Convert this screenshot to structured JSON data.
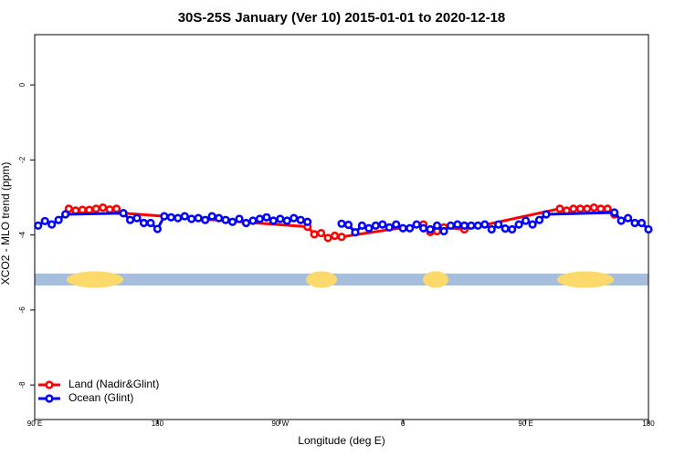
{
  "chart_data": {
    "type": "line",
    "title": "30S-25S January (Ver 10)   2015-01-01 to 2020-12-18",
    "x_label": "Longitude (deg E)",
    "y_label": "XCO2 - MLO trend (ppm)",
    "xlim": [
      90,
      540
    ],
    "xticks": [
      {
        "value": 90,
        "label": "90 E"
      },
      180,
      {
        "value": 270,
        "label": "90 W"
      },
      {
        "value": 360,
        "label": "0"
      },
      {
        "value": 450,
        "label": "90 E"
      },
      {
        "value": 540,
        "label": "180"
      }
    ],
    "ylim": [
      -8.92,
      1.34
    ],
    "yticks": [
      -8,
      -6,
      -4,
      -2,
      0
    ],
    "legend": "bottomleft",
    "series": [
      {
        "name": "Land (Nadir&Glint)",
        "color": "#ff0000",
        "x": [
          115,
          120,
          125,
          130,
          135,
          140,
          145,
          150,
          155,
          290,
          295,
          300,
          305,
          310,
          315,
          375,
          380,
          385,
          390,
          405,
          475,
          480,
          485,
          490,
          495,
          500,
          505,
          510,
          515
        ],
        "values": [
          -3.3,
          -3.35,
          -3.33,
          -3.33,
          -3.3,
          -3.27,
          -3.32,
          -3.3,
          -3.42,
          -3.78,
          -3.98,
          -3.95,
          -4.08,
          -4.02,
          -4.05,
          -3.72,
          -3.92,
          -3.9,
          -3.8,
          -3.85,
          -3.3,
          -3.35,
          -3.3,
          -3.3,
          -3.3,
          -3.27,
          -3.3,
          -3.3,
          -3.45
        ]
      },
      {
        "name": "Ocean (Glint)",
        "color": "#0000ff",
        "x": [
          92.5,
          97.5,
          102.5,
          107.5,
          112.5,
          155,
          160,
          165,
          170,
          175,
          180,
          185,
          190,
          195,
          200,
          205,
          210,
          215,
          220,
          225,
          230,
          235,
          240,
          245,
          250,
          255,
          260,
          265,
          270,
          275,
          280,
          285,
          290,
          302.5,
          315,
          320,
          325,
          330,
          335,
          340,
          345,
          350,
          355,
          360,
          365,
          370,
          375,
          380,
          385,
          390,
          395,
          400,
          405,
          410,
          415,
          420,
          425,
          430,
          435,
          440,
          445,
          450,
          455,
          460,
          465,
          515,
          520,
          525,
          530,
          535,
          540
        ],
        "values": [
          -3.75,
          -3.63,
          -3.72,
          -3.6,
          -3.45,
          -3.42,
          -3.6,
          -3.55,
          -3.68,
          -3.68,
          -3.84,
          -3.5,
          -3.53,
          -3.55,
          -3.5,
          -3.57,
          -3.55,
          -3.6,
          -3.5,
          -3.55,
          -3.6,
          -3.65,
          -3.57,
          -3.68,
          -3.62,
          -3.57,
          -3.53,
          -3.62,
          -3.57,
          -3.62,
          -3.55,
          -3.6,
          -3.65,
          null,
          -3.7,
          -3.73,
          -3.93,
          -3.75,
          -3.82,
          -3.75,
          -3.72,
          -3.8,
          -3.72,
          -3.82,
          -3.82,
          -3.72,
          -3.82,
          -3.85,
          -3.75,
          -3.9,
          -3.75,
          -3.72,
          -3.75,
          -3.75,
          -3.75,
          -3.72,
          -3.85,
          -3.72,
          -3.83,
          -3.85,
          -3.72,
          -3.62,
          -3.72,
          -3.6,
          -3.45,
          -3.4,
          -3.62,
          -3.55,
          -3.68,
          -3.68,
          -3.85
        ]
      }
    ]
  }
}
